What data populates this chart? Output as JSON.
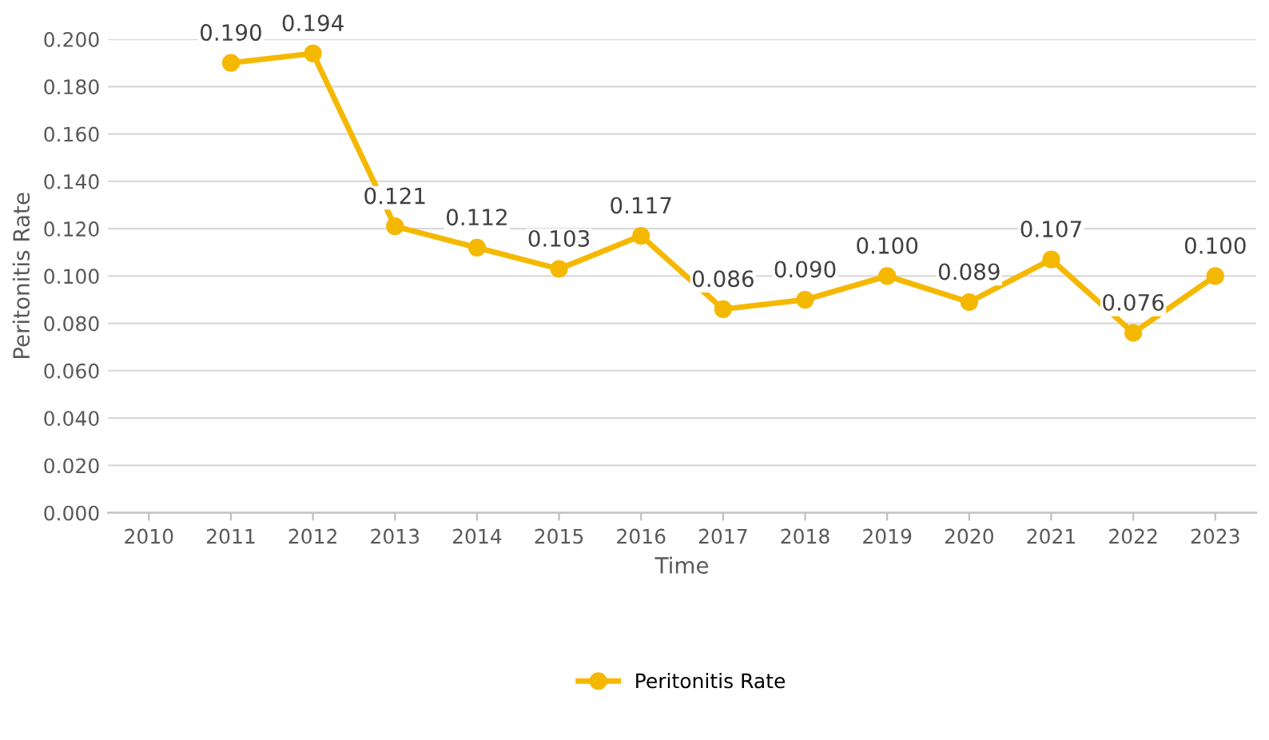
{
  "chart_data": {
    "type": "line",
    "xlabel": "Time",
    "ylabel": "Peritonitis Rate",
    "categories": [
      "2010",
      "2011",
      "2012",
      "2013",
      "2014",
      "2015",
      "2016",
      "2017",
      "2018",
      "2019",
      "2020",
      "2021",
      "2022",
      "2023"
    ],
    "series": [
      {
        "name": "Peritonitis Rate",
        "color": "#f5b800",
        "values": [
          null,
          0.19,
          0.194,
          0.121,
          0.112,
          0.103,
          0.117,
          0.086,
          0.09,
          0.1,
          0.089,
          0.107,
          0.076,
          0.1
        ],
        "value_labels": [
          null,
          "0.190",
          "0.194",
          "0.121",
          "0.112",
          "0.103",
          "0.117",
          "0.086",
          "0.090",
          "0.100",
          "0.089",
          "0.107",
          "0.076",
          "0.100"
        ]
      }
    ],
    "ylim": [
      0,
      0.2
    ],
    "yticks": [
      {
        "value": 0,
        "label": "0.000"
      },
      {
        "value": 0.02,
        "label": "0.020"
      },
      {
        "value": 0.04,
        "label": "0.040"
      },
      {
        "value": 0.06,
        "label": "0.060"
      },
      {
        "value": 0.08,
        "label": "0.080"
      },
      {
        "value": 0.1,
        "label": "0.100"
      },
      {
        "value": 0.12,
        "label": "0.120"
      },
      {
        "value": 0.14,
        "label": "0.140"
      },
      {
        "value": 0.16,
        "label": "0.160"
      },
      {
        "value": 0.18,
        "label": "0.180"
      },
      {
        "value": 0.2,
        "label": "0.200"
      }
    ],
    "grid": "y",
    "legend": "bottom",
    "marker": "circle",
    "line_style": "solid"
  }
}
